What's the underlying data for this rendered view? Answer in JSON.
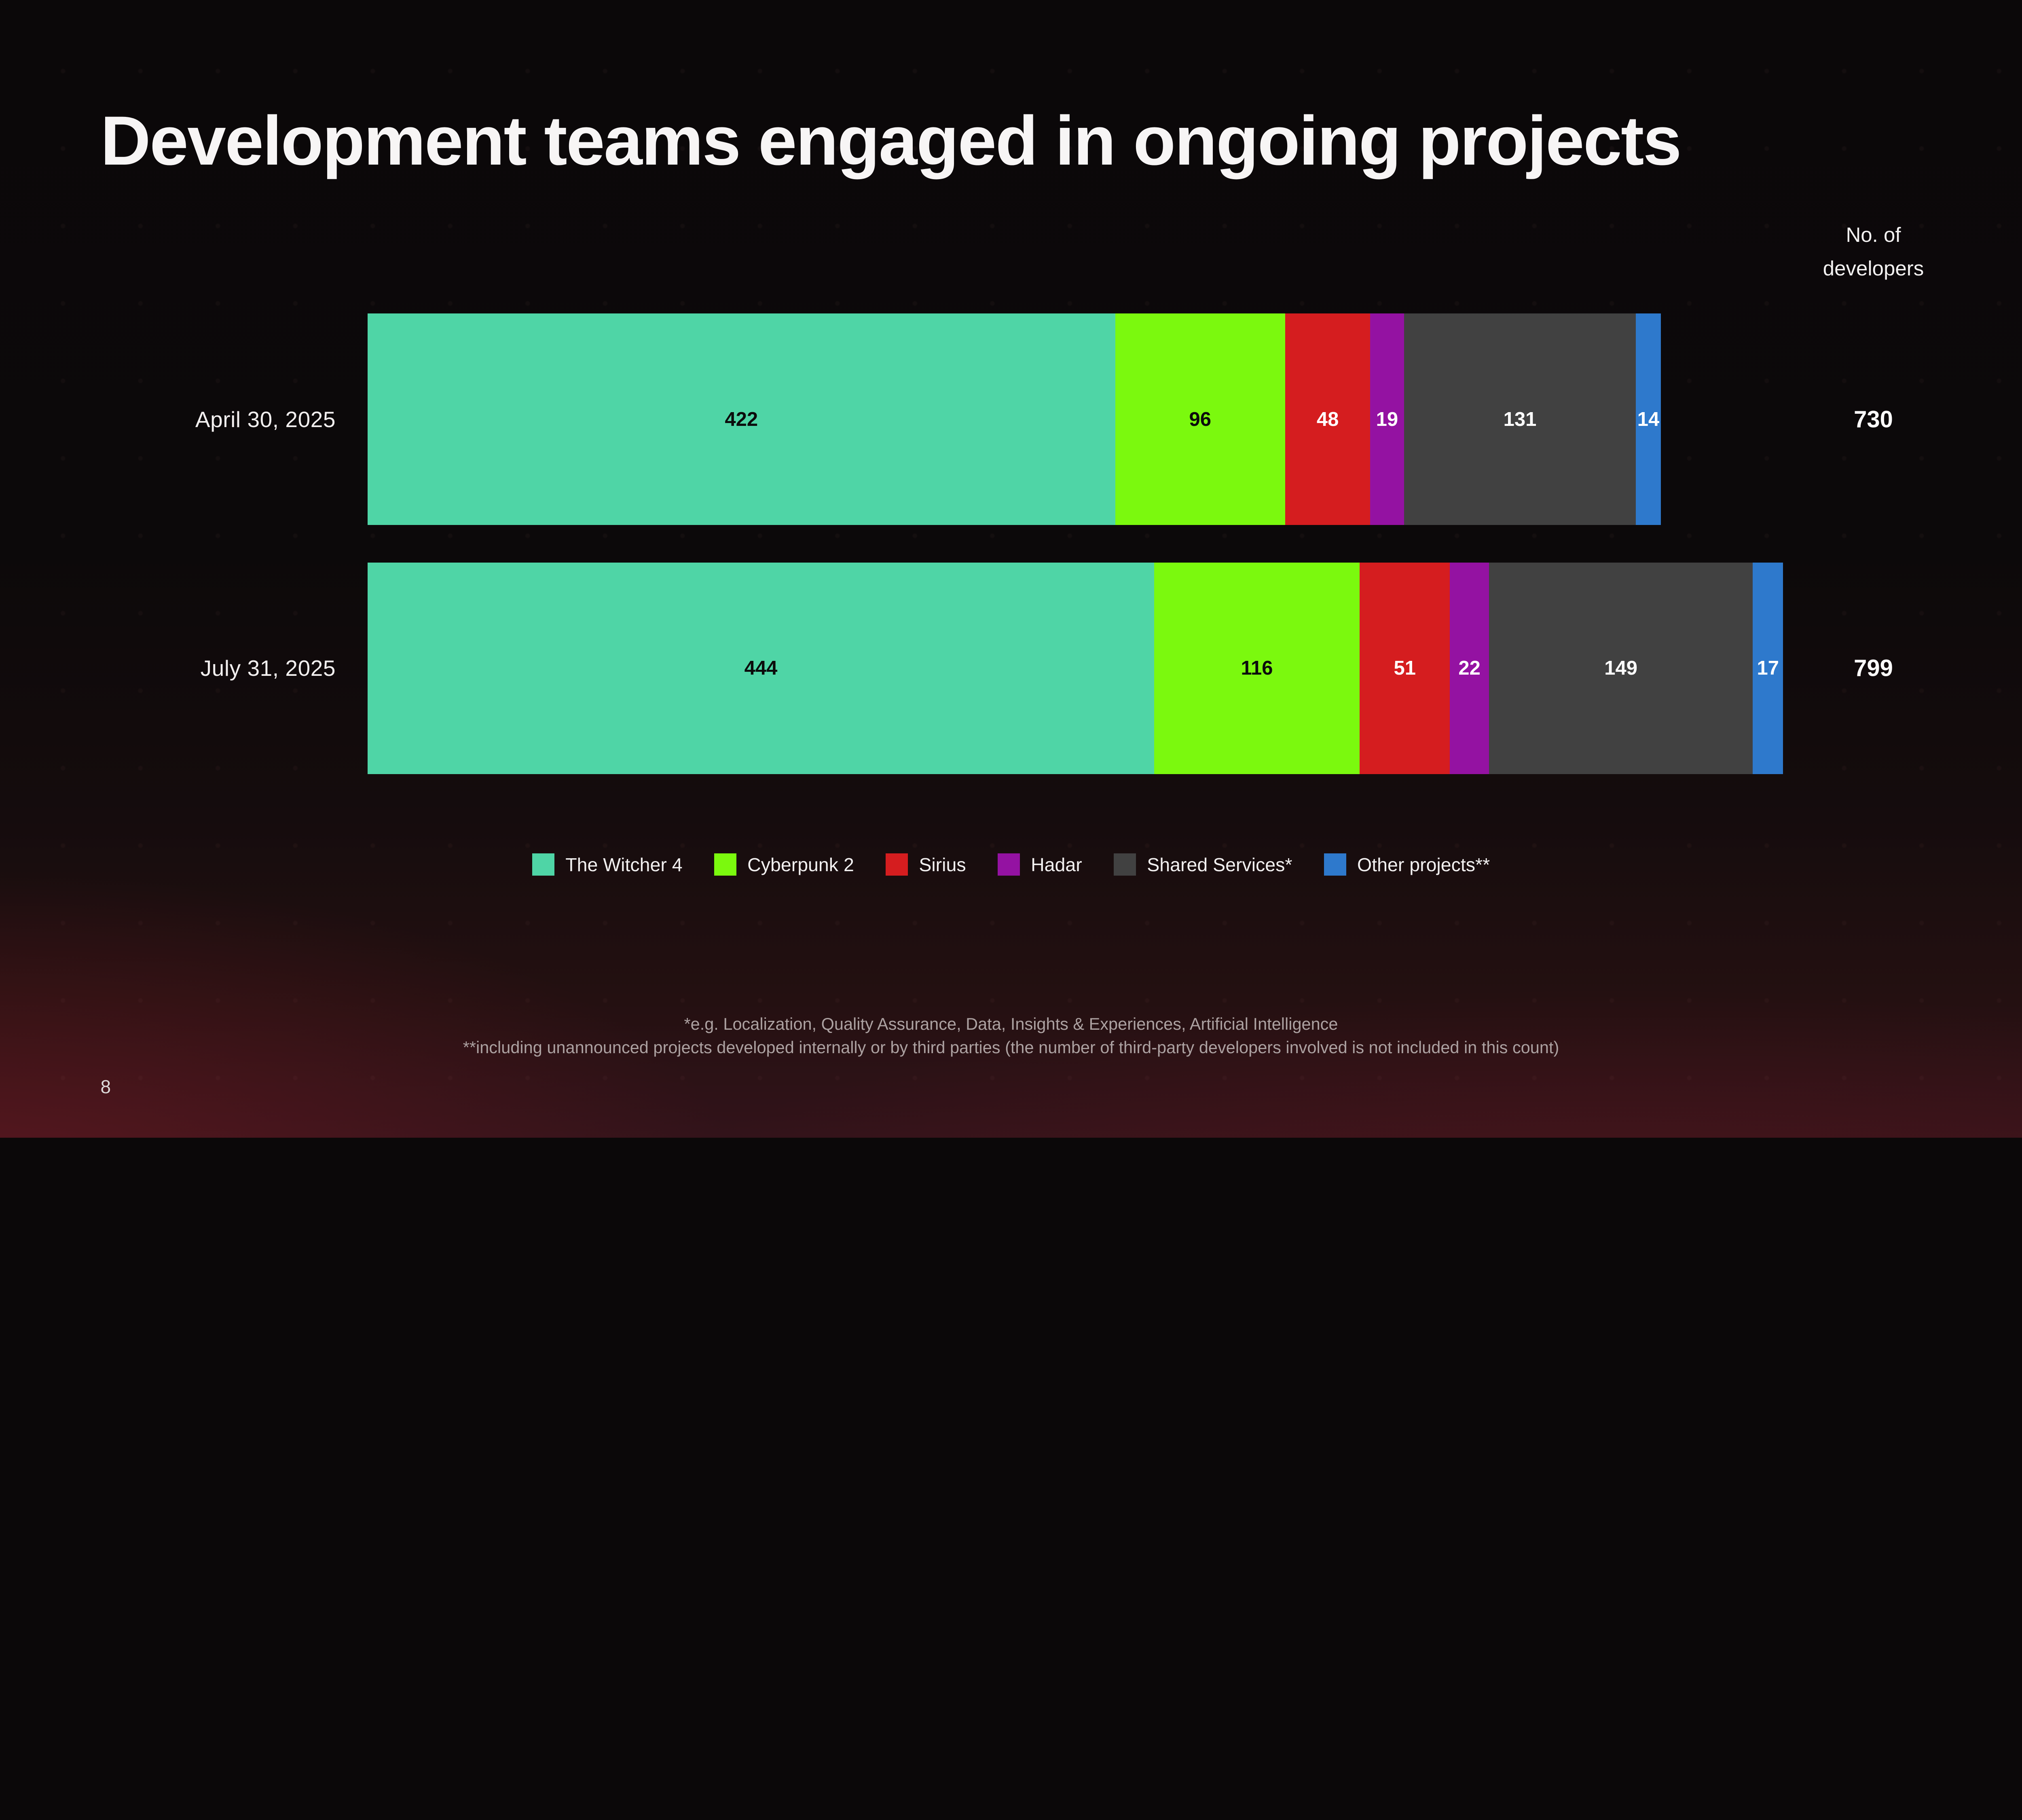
{
  "slide": {
    "title": "Development teams engaged in ongoing projects",
    "right_header": {
      "line1": "No. of",
      "line2": "developers"
    },
    "footnotes": [
      "*e.g. Localization, Quality Assurance, Data, Insights & Experiences, Artificial Intelligence",
      "**including unannounced projects developed internally or by third parties (the number of third-party developers involved is not included in this count)"
    ],
    "page_number": "8"
  },
  "chart_data": {
    "type": "bar",
    "stacked": true,
    "orientation": "horizontal",
    "title": "Development teams engaged in ongoing projects",
    "value_axis_label": "No. of developers",
    "categories": [
      "April 30, 2025",
      "July 31, 2025"
    ],
    "series": [
      {
        "name": "The Witcher 4",
        "color": "#4FD5A6",
        "label_color": "#0C0C0C",
        "values": [
          422,
          444
        ]
      },
      {
        "name": "Cyberpunk 2",
        "color": "#7BF90E",
        "label_color": "#0C0C0C",
        "values": [
          96,
          116
        ]
      },
      {
        "name": "Sirius",
        "color": "#D51D1F",
        "label_color": "#FFFFFF",
        "values": [
          48,
          51
        ]
      },
      {
        "name": "Hadar",
        "color": "#9412A2",
        "label_color": "#FFFFFF",
        "values": [
          19,
          22
        ]
      },
      {
        "name": "Shared Services*",
        "color": "#414141",
        "label_color": "#FFFFFF",
        "values": [
          131,
          149
        ]
      },
      {
        "name": "Other projects**",
        "color": "#2E79CC",
        "label_color": "#FFFFFF",
        "values": [
          14,
          17
        ]
      }
    ],
    "totals": [
      730,
      799
    ],
    "value_axis_max": 799,
    "grid": false,
    "legend_position": "bottom"
  }
}
